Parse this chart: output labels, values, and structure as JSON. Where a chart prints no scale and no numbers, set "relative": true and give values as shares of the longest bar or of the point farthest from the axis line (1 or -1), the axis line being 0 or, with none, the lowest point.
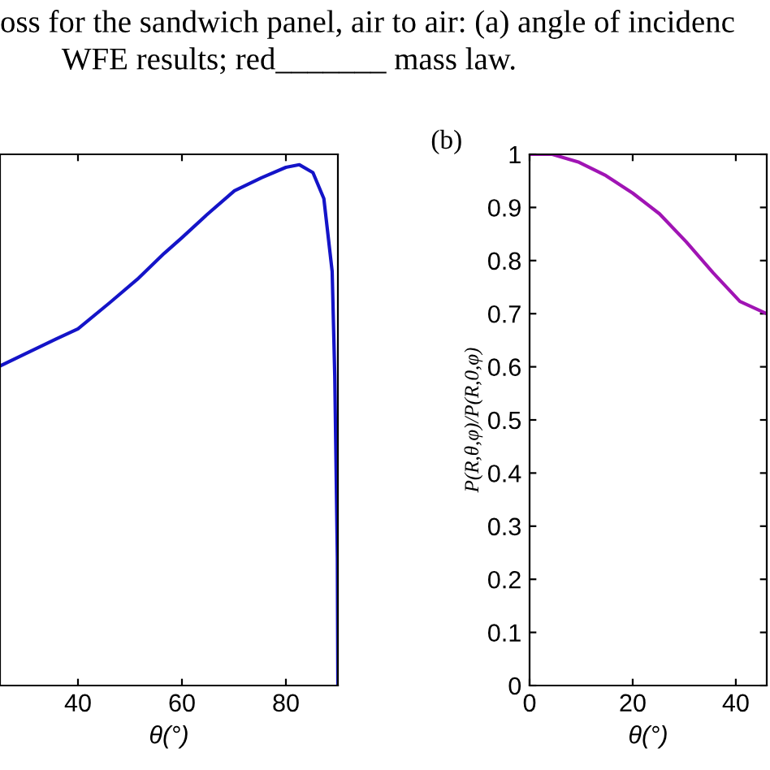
{
  "chart_data": [
    {
      "type": "line",
      "relative": true,
      "xlabel": "θ(°)",
      "xlim": [
        25,
        90
      ],
      "xticks": [
        40,
        60,
        80
      ],
      "tick_labels": "x",
      "grid": false,
      "legend": false,
      "annotations": [
        "oss for the sandwich panel, air to air: (a) angle of incidenc",
        "WFE results; red_______ mass law."
      ],
      "series": [
        {
          "color": "#1414c8",
          "x": [
            25.3,
            30.5,
            35.7,
            40,
            46.1,
            51.4,
            56.6,
            60,
            64.9,
            70.1,
            75.3,
            80,
            82.6,
            85.2,
            87.3,
            88.9,
            89.4,
            89.9,
            90
          ],
          "values": [
            0.615,
            0.64,
            0.665,
            0.685,
            0.735,
            0.78,
            0.83,
            0.86,
            0.905,
            0.95,
            0.975,
            0.995,
            1.0,
            0.985,
            0.935,
            0.795,
            0.595,
            0.245,
            0
          ]
        }
      ]
    },
    {
      "type": "line",
      "title": "(b)",
      "xlabel": "θ(°)",
      "ylabel": "P(R,θ,φ)/P(R,0,φ)",
      "xlim": [
        0,
        46
      ],
      "xticks": [
        0,
        20,
        40
      ],
      "ylim": [
        0,
        1
      ],
      "yticks": [
        0,
        0.1,
        0.2,
        0.3,
        0.4,
        0.5,
        0.6,
        0.7,
        0.8,
        0.9,
        1
      ],
      "grid": false,
      "legend": false,
      "series": [
        {
          "color": "#a014b4",
          "x": [
            0,
            4.4,
            9.6,
            14.8,
            20,
            25.2,
            30.4,
            35.6,
            40.8,
            46
          ],
          "values": [
            1.0,
            1.0,
            0.985,
            0.96,
            0.927,
            0.888,
            0.835,
            0.777,
            0.723,
            0.7
          ]
        }
      ]
    }
  ]
}
